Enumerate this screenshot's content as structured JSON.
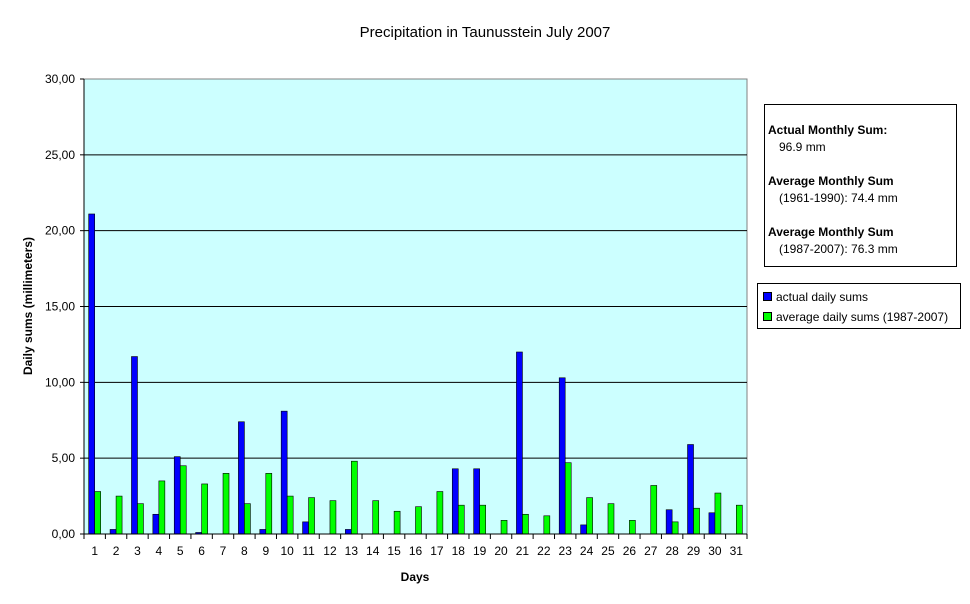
{
  "chart_data": {
    "type": "bar",
    "title": "Precipitation in Taunusstein  July  2007",
    "xlabel": "Days",
    "ylabel": "Daily sums  (millimeters)",
    "ylim": [
      0,
      30
    ],
    "yticks": [
      "0,00",
      "5,00",
      "10,00",
      "15,00",
      "20,00",
      "25,00",
      "30,00"
    ],
    "grid": true,
    "legend_position": "right",
    "plot_background": "#CCFFFF",
    "categories": [
      "1",
      "2",
      "3",
      "4",
      "5",
      "6",
      "7",
      "8",
      "9",
      "10",
      "11",
      "12",
      "13",
      "14",
      "15",
      "16",
      "17",
      "18",
      "19",
      "20",
      "21",
      "22",
      "23",
      "24",
      "25",
      "26",
      "27",
      "28",
      "29",
      "30",
      "31"
    ],
    "series": [
      {
        "name": "actual daily sums",
        "color": "#0000FF",
        "values": [
          21.1,
          0.3,
          11.7,
          1.3,
          5.1,
          0.1,
          0,
          7.4,
          0.3,
          8.1,
          0.8,
          0,
          0.3,
          0,
          0,
          0,
          0,
          4.3,
          4.3,
          0,
          12.0,
          0,
          10.3,
          0.6,
          0,
          0,
          0,
          1.6,
          5.9,
          1.4,
          0
        ]
      },
      {
        "name": "average daily sums (1987-2007)",
        "color": "#00FF00",
        "values": [
          2.8,
          2.5,
          2.0,
          3.5,
          4.5,
          3.3,
          4.0,
          2.0,
          4.0,
          2.5,
          2.4,
          2.2,
          4.8,
          2.2,
          1.5,
          1.8,
          2.8,
          1.9,
          1.9,
          0.9,
          1.3,
          1.2,
          4.7,
          2.4,
          2.0,
          0.9,
          3.2,
          0.8,
          1.7,
          2.7,
          1.9
        ]
      }
    ]
  },
  "info_box": {
    "actual_heading": "Actual Monthly Sum:",
    "actual_value": "96.9 mm",
    "avg1_heading": "Average Monthly Sum",
    "avg1_value": "(1961-1990):   74.4 mm",
    "avg2_heading": "Average Monthly Sum",
    "avg2_value": "(1987-2007):   76.3 mm"
  }
}
